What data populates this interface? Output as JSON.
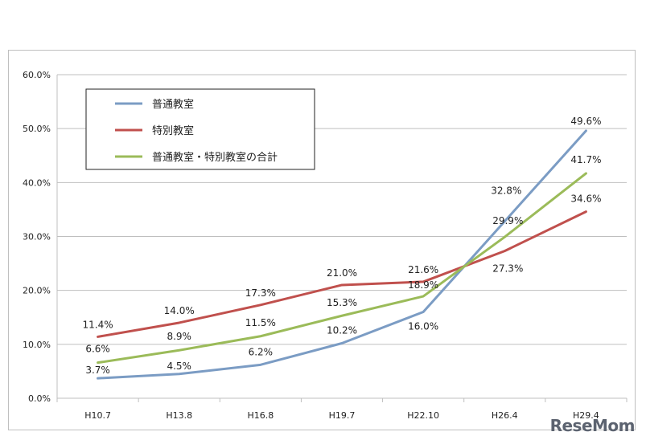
{
  "chart_data": {
    "type": "line",
    "categories": [
      "H10.7",
      "H13.8",
      "H16.8",
      "H19.7",
      "H22.10",
      "H26.4",
      "H29.4"
    ],
    "ylim": [
      0,
      60
    ],
    "yticks": [
      "0.0%",
      "10.0%",
      "20.0%",
      "30.0%",
      "40.0%",
      "50.0%",
      "60.0%"
    ],
    "grid": true,
    "legend_position": "top-left",
    "series": [
      {
        "name": "普通教室",
        "color": "#7b9cc4",
        "values": [
          3.7,
          4.5,
          6.2,
          10.2,
          16.0,
          32.8,
          49.6
        ],
        "labels": [
          "3.7%",
          "4.5%",
          "6.2%",
          "10.2%",
          "16.0%",
          "32.8%",
          "49.6%"
        ]
      },
      {
        "name": "特別教室",
        "color": "#c0504d",
        "values": [
          11.4,
          14.0,
          17.3,
          21.0,
          21.6,
          27.3,
          34.6
        ],
        "labels": [
          "11.4%",
          "14.0%",
          "17.3%",
          "21.0%",
          "21.6%",
          "27.3%",
          "34.6%"
        ]
      },
      {
        "name": "普通教室・特別教室の合計",
        "color": "#9bbb59",
        "values": [
          6.6,
          8.9,
          11.5,
          15.3,
          18.9,
          29.9,
          41.7
        ],
        "labels": [
          "6.6%",
          "8.9%",
          "11.5%",
          "15.3%",
          "18.9%",
          "29.9%",
          "41.7%"
        ]
      }
    ]
  },
  "watermark": "ReseMom"
}
